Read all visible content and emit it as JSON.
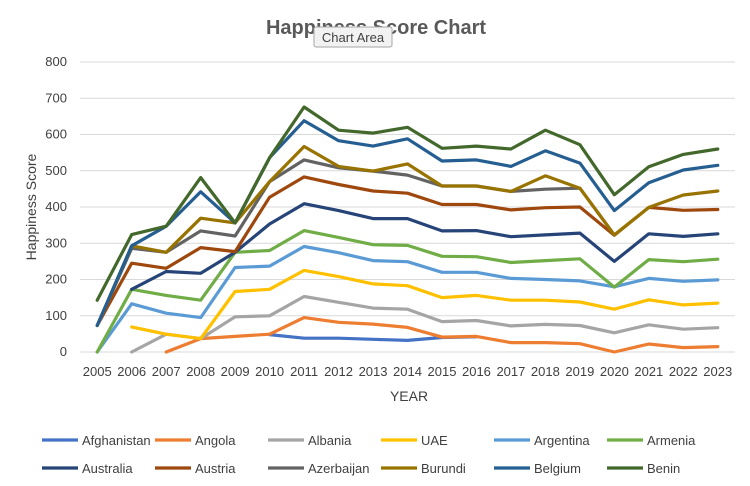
{
  "chart_data": {
    "type": "line",
    "title": "Happiness Score Chart",
    "xlabel": "YEAR",
    "ylabel": "Happiness Score",
    "ylim": [
      0,
      800
    ],
    "yticks": [
      0,
      100,
      200,
      300,
      400,
      500,
      600,
      700,
      800
    ],
    "grid": true,
    "legend_position": "bottom",
    "tooltip": "Chart Area",
    "x": [
      "2005",
      "2006",
      "2007",
      "2008",
      "2009",
      "2010",
      "2011",
      "2012",
      "2013",
      "2014",
      "2015",
      "2016",
      "2017",
      "2018",
      "2019",
      "2020",
      "2021",
      "2022",
      "2023"
    ],
    "series": [
      {
        "name": "Afghanistan",
        "color": "#4472C4",
        "values": [
          null,
          null,
          null,
          null,
          null,
          48,
          38,
          38,
          35,
          32,
          40,
          42,
          null,
          null,
          null,
          null,
          null,
          null,
          null
        ]
      },
      {
        "name": "Angola",
        "color": "#ED7D31",
        "values": [
          null,
          null,
          0,
          37,
          43,
          49,
          95,
          82,
          77,
          68,
          41,
          43,
          26,
          26,
          23,
          0,
          22,
          12,
          15
        ]
      },
      {
        "name": "Albania",
        "color": "#A5A5A5",
        "values": [
          null,
          0,
          49,
          37,
          97,
          100,
          153,
          137,
          121,
          118,
          84,
          87,
          72,
          76,
          73,
          53,
          75,
          63,
          67
        ]
      },
      {
        "name": "UAE",
        "color": "#FFC000",
        "values": [
          null,
          69,
          49,
          37,
          167,
          173,
          225,
          208,
          188,
          183,
          150,
          156,
          143,
          143,
          138,
          118,
          144,
          130,
          135
        ]
      },
      {
        "name": "Argentina",
        "color": "#5B9BD5",
        "values": [
          0,
          133,
          107,
          95,
          233,
          237,
          291,
          274,
          252,
          249,
          220,
          220,
          203,
          200,
          196,
          180,
          203,
          195,
          199
        ]
      },
      {
        "name": "Armenia",
        "color": "#70AD47",
        "values": [
          0,
          173,
          156,
          143,
          275,
          280,
          335,
          316,
          296,
          294,
          264,
          263,
          247,
          252,
          257,
          179,
          255,
          249,
          256
        ]
      },
      {
        "name": "Australia",
        "color": "#264478",
        "values": [
          null,
          173,
          222,
          217,
          275,
          353,
          409,
          390,
          368,
          368,
          334,
          335,
          318,
          323,
          328,
          250,
          326,
          319,
          326
        ]
      },
      {
        "name": "Austria",
        "color": "#9E480E",
        "values": [
          73,
          245,
          231,
          288,
          277,
          427,
          483,
          462,
          444,
          438,
          407,
          407,
          392,
          398,
          400,
          322,
          399,
          391,
          393
        ]
      },
      {
        "name": "Azerbaijan",
        "color": "#636363",
        "values": [
          73,
          286,
          275,
          334,
          320,
          470,
          530,
          508,
          499,
          488,
          458,
          458,
          443,
          449,
          452,
          323,
          null,
          null,
          null
        ]
      },
      {
        "name": "Burundi",
        "color": "#997300",
        "values": [
          73,
          293,
          275,
          369,
          356,
          470,
          567,
          512,
          499,
          519,
          458,
          458,
          443,
          486,
          452,
          323,
          399,
          433,
          444
        ]
      },
      {
        "name": "Belgium",
        "color": "#255E91",
        "values": [
          73,
          293,
          347,
          442,
          356,
          536,
          638,
          583,
          568,
          588,
          527,
          530,
          512,
          555,
          521,
          390,
          467,
          502,
          515
        ]
      },
      {
        "name": "Benin",
        "color": "#43682B",
        "values": [
          143,
          324,
          347,
          481,
          356,
          536,
          676,
          612,
          604,
          620,
          562,
          568,
          560,
          612,
          572,
          434,
          511,
          545,
          560
        ]
      }
    ]
  }
}
